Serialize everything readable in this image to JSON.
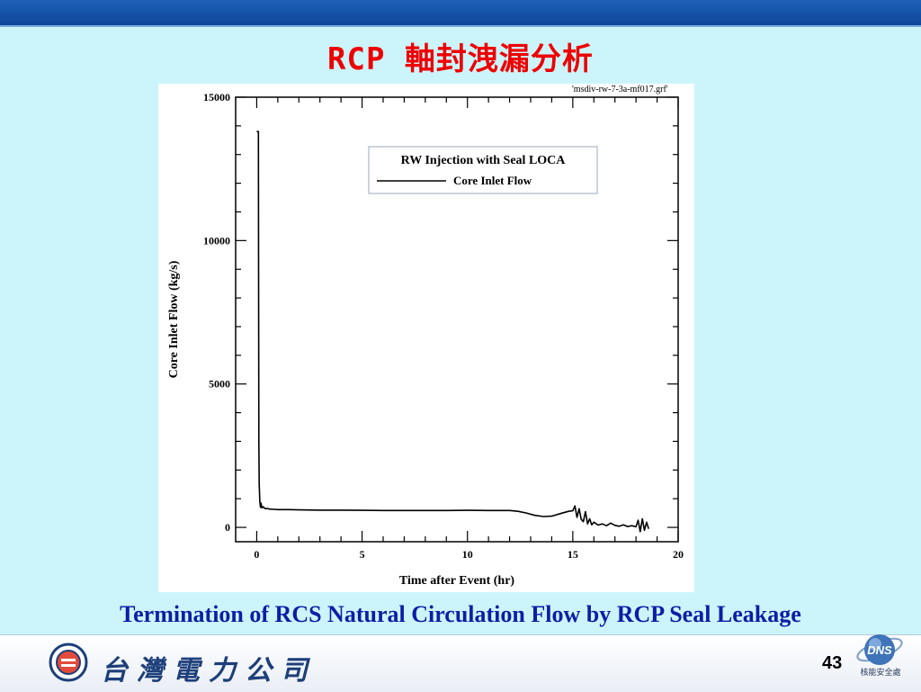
{
  "slide": {
    "title": "RCP 軸封洩漏分析",
    "caption": "Termination of RCS Natural Circulation Flow by RCP Seal Leakage",
    "page_number": "43",
    "footer_company": "台灣電力公司",
    "footer_badge_text": "DNS",
    "footer_badge_sub": "核能安全處"
  },
  "chart_data": {
    "type": "line",
    "file_label": "'msdiv-rw-7-3a-mf017.grf'",
    "xlabel": "Time after Event (hr)",
    "ylabel": "Core Inlet Flow (kg/s)",
    "xlim": [
      -1,
      20
    ],
    "ylim": [
      -500,
      15000
    ],
    "xticks": [
      0,
      5,
      10,
      15,
      20
    ],
    "yticks": [
      0,
      5000,
      10000,
      15000
    ],
    "grid": false,
    "legend": {
      "title": "RW Injection with Seal LOCA",
      "placement": "top-right"
    },
    "series": [
      {
        "name": "Core Inlet Flow",
        "x": [
          0,
          0.08,
          0.09,
          0.1,
          0.12,
          0.15,
          0.18,
          0.2,
          0.25,
          0.3,
          0.4,
          0.5,
          0.6,
          0.8,
          1.0,
          1.5,
          2,
          3,
          4,
          5,
          6,
          7,
          8,
          9,
          10,
          11,
          12,
          12.4,
          12.8,
          13.2,
          13.6,
          14.0,
          14.4,
          14.8,
          15.0,
          15.1,
          15.2,
          15.3,
          15.4,
          15.5,
          15.6,
          15.7,
          15.8,
          15.9,
          16.0,
          16.2,
          16.4,
          16.6,
          16.8,
          17.0,
          17.2,
          17.4,
          17.6,
          17.8,
          18.0,
          18.1,
          18.2,
          18.3,
          18.4,
          18.5,
          18.6
        ],
        "y": [
          13800,
          13800,
          9000,
          3000,
          1500,
          900,
          700,
          850,
          680,
          720,
          650,
          660,
          640,
          630,
          620,
          620,
          610,
          600,
          600,
          595,
          590,
          590,
          590,
          590,
          595,
          590,
          590,
          560,
          500,
          420,
          380,
          390,
          480,
          560,
          580,
          750,
          350,
          650,
          280,
          200,
          550,
          120,
          300,
          90,
          180,
          80,
          120,
          60,
          150,
          70,
          40,
          90,
          30,
          60,
          20,
          250,
          -150,
          300,
          -100,
          180,
          -50
        ]
      }
    ]
  }
}
